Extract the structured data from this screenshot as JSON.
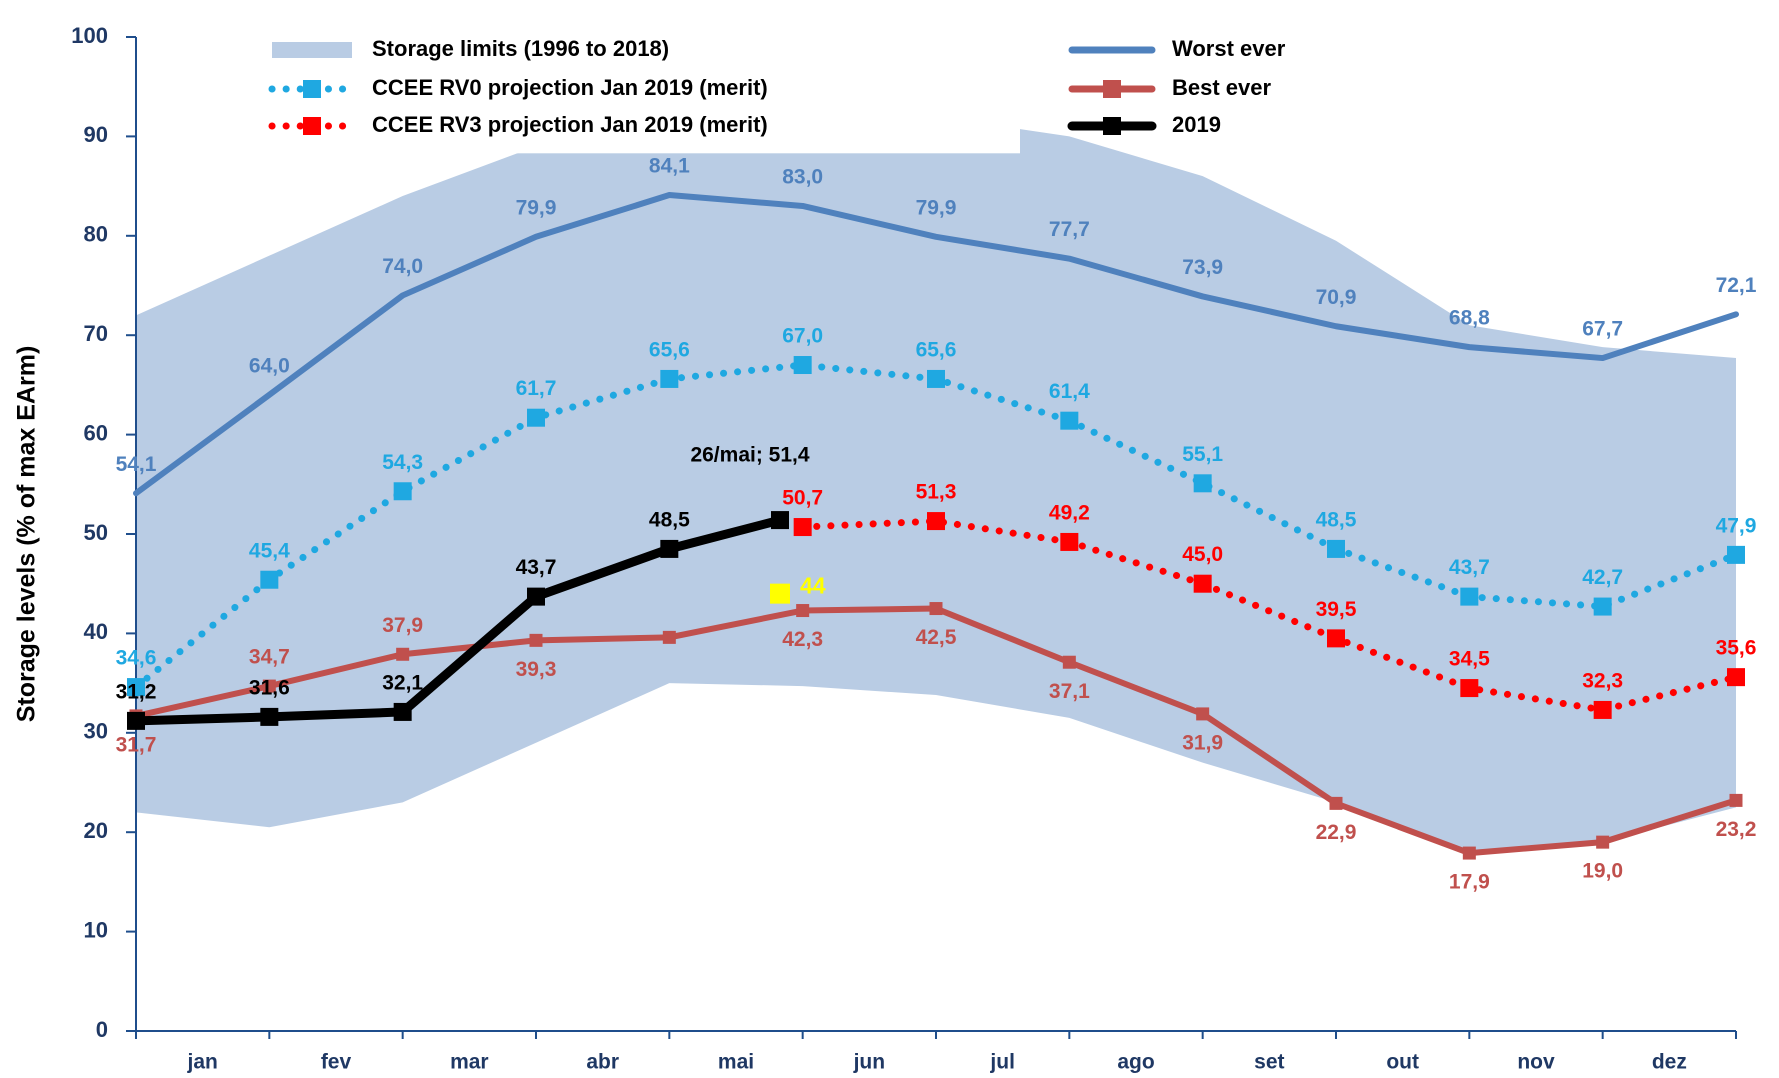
{
  "chart_data": {
    "type": "line",
    "y_label": "Storage levels (% of max EArm)",
    "categories": [
      null,
      "jan",
      "fev",
      "mar",
      "abr",
      "mai",
      "jun",
      "jul",
      "ago",
      "set",
      "out",
      "nov",
      "dez"
    ],
    "ylim": [
      0,
      100
    ],
    "yticks": [
      0,
      10,
      20,
      30,
      40,
      50,
      60,
      70,
      80,
      90,
      100
    ],
    "band": {
      "name": "Storage limits (1996 to 2018)",
      "color": "#b9cce4",
      "upper": [
        72,
        78,
        84,
        89,
        92,
        93,
        92,
        90,
        86,
        79.5,
        71,
        68.8,
        67.7
      ],
      "lower": [
        22,
        20.5,
        23,
        29,
        35,
        34.7,
        33.8,
        31.5,
        27,
        23,
        18,
        19,
        22.5
      ]
    },
    "series": [
      {
        "name": "Worst ever",
        "color": "#4f81bd",
        "style": "solid",
        "values": [
          54.1,
          64.0,
          74.0,
          79.9,
          84.1,
          83.0,
          79.9,
          77.7,
          73.9,
          70.9,
          68.8,
          67.7,
          72.1
        ],
        "value_labels": [
          "54,1",
          "64,0",
          "74,0",
          "79,9",
          "84,1",
          "83,0",
          "79,9",
          "77,7",
          "73,9",
          "70,9",
          "68,8",
          "67,7",
          "72,1"
        ]
      },
      {
        "name": "Best ever",
        "color": "#c0504d",
        "style": "solid-marker",
        "values": [
          31.7,
          34.7,
          37.9,
          39.3,
          39.6,
          42.3,
          42.5,
          37.1,
          31.9,
          22.9,
          17.9,
          19.0,
          23.2
        ],
        "value_labels": [
          "31,7",
          "34,7",
          "37,9",
          "39,3",
          null,
          "42,3",
          "42,5",
          "37,1",
          "31,9",
          "22,9",
          "17,9",
          "19,0",
          "23,2"
        ]
      },
      {
        "name": "CCEE RV0 projection Jan 2019 (merit)",
        "color": "#1fa8e1",
        "style": "dotted",
        "values": [
          34.6,
          45.4,
          54.3,
          61.7,
          65.6,
          67.0,
          65.6,
          61.4,
          55.1,
          48.5,
          43.7,
          42.7,
          47.9
        ],
        "value_labels": [
          "34,6",
          "45,4",
          "54,3",
          "61,7",
          "65,6",
          "67,0",
          "65,6",
          "61,4",
          "55,1",
          "48,5",
          "43,7",
          "42,7",
          "47,9"
        ]
      },
      {
        "name": "CCEE RV3 projection Jan 2019 (merit)",
        "color": "#ff0000",
        "style": "dotted",
        "values": [
          null,
          null,
          null,
          null,
          null,
          50.7,
          51.3,
          49.2,
          45.0,
          39.5,
          34.5,
          32.3,
          35.6
        ],
        "value_labels": [
          null,
          null,
          null,
          null,
          null,
          "50,7",
          "51,3",
          "49,2",
          "45,0",
          "39,5",
          "34,5",
          "32,3",
          "35,6"
        ]
      },
      {
        "name": "2019",
        "color": "#000000",
        "style": "thick",
        "values": [
          31.2,
          31.6,
          32.1,
          43.7,
          48.5,
          51.4,
          null,
          null,
          null,
          null,
          null,
          null,
          null
        ],
        "value_labels": [
          "31,2",
          "31,6",
          "32,1",
          "43,7",
          "48,5",
          "26/mai; 51,4",
          null,
          null,
          null,
          null,
          null,
          null,
          null
        ]
      }
    ],
    "marker": {
      "value": 44,
      "label": "44",
      "color": "#ffff00"
    }
  }
}
